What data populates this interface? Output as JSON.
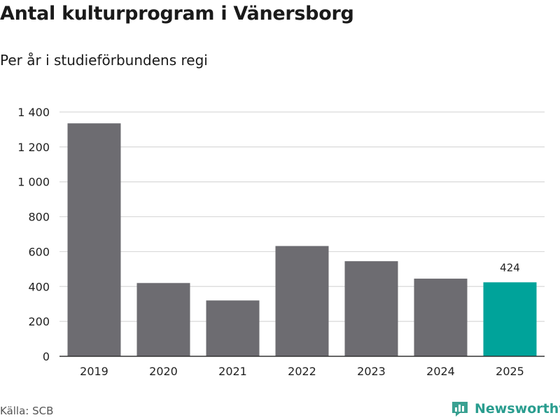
{
  "header": {
    "title": "Antal kulturprogram i Vänersborg",
    "subtitle": "Per år i studieförbundens regi"
  },
  "footer": {
    "source": "Källa: SCB",
    "brand": "Newsworthy"
  },
  "colors": {
    "bar": "#6d6c71",
    "highlight": "#00a39a",
    "grid": "#d9d9d9",
    "brand": "#2a9d8f"
  },
  "chart_data": {
    "type": "bar",
    "categories": [
      "2019",
      "2020",
      "2021",
      "2022",
      "2023",
      "2024",
      "2025"
    ],
    "values": [
      1335,
      420,
      320,
      632,
      545,
      445,
      424
    ],
    "highlight_index": 6,
    "data_labels": [
      {
        "index": 6,
        "text": "424"
      }
    ],
    "ylim": [
      0,
      1400
    ],
    "yticks": [
      0,
      200,
      400,
      600,
      800,
      1000,
      1200,
      1400
    ],
    "ytick_labels": [
      "0",
      "200",
      "400",
      "600",
      "800",
      "1 000",
      "1 200",
      "1 400"
    ],
    "grid": true,
    "legend": "none"
  }
}
